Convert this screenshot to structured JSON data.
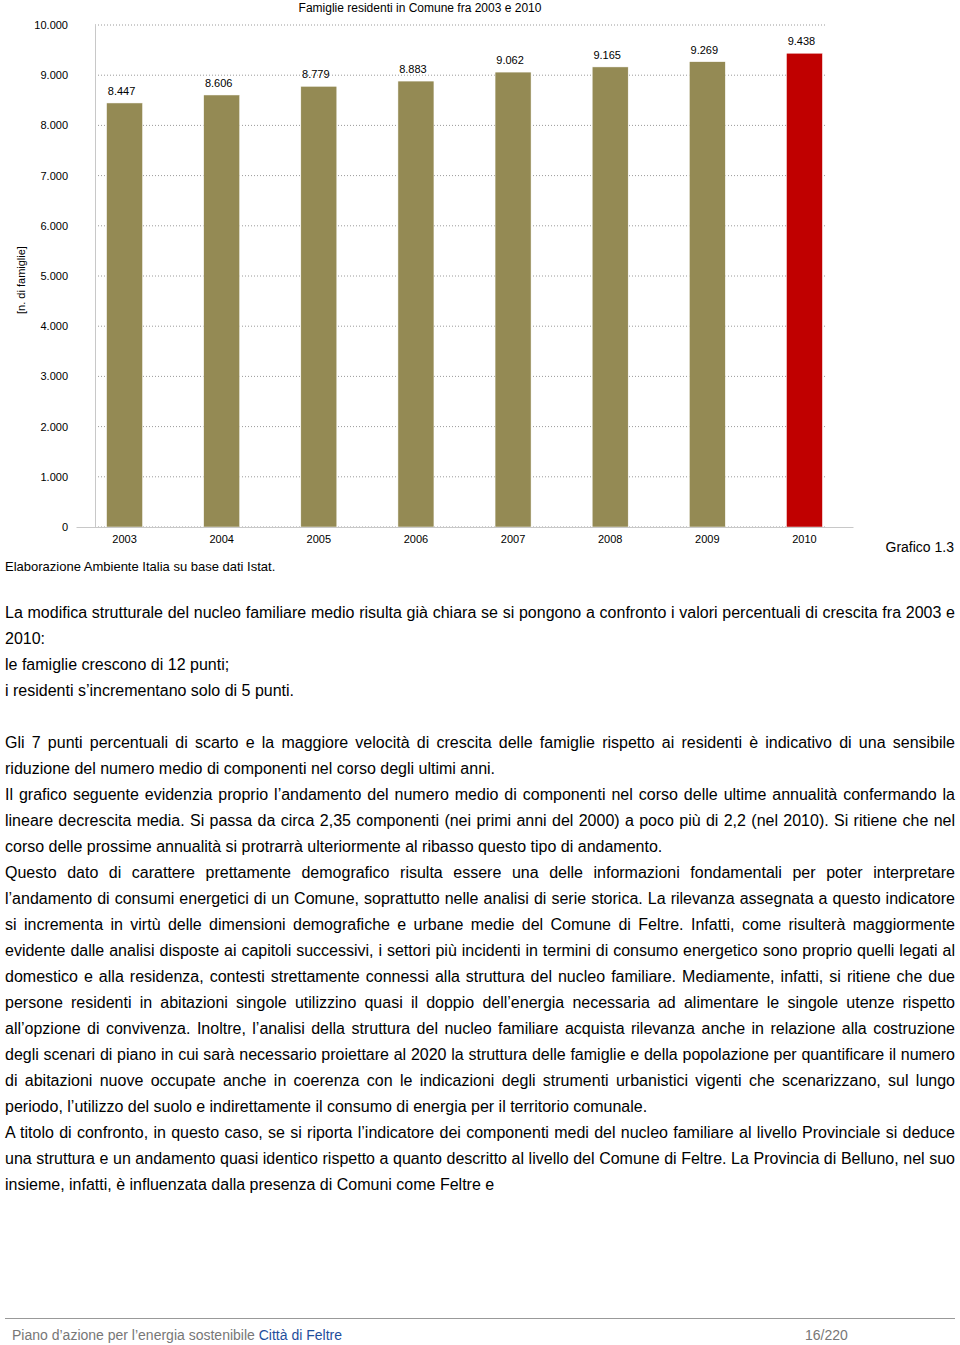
{
  "chart_data": {
    "type": "bar",
    "title": "Famiglie residenti in Comune fra 2003 e 2010",
    "y_label": "[n. di famiglie]",
    "categories": [
      "2003",
      "2004",
      "2005",
      "2006",
      "2007",
      "2008",
      "2009",
      "2010"
    ],
    "values": [
      8447,
      8606,
      8779,
      8883,
      9062,
      9165,
      9269,
      9438
    ],
    "value_labels": [
      "8.447",
      "8.606",
      "8.779",
      "8.883",
      "9.062",
      "9.165",
      "9.269",
      "9.438"
    ],
    "colors": [
      "#948a54",
      "#948a54",
      "#948a54",
      "#948a54",
      "#948a54",
      "#948a54",
      "#948a54",
      "#c00000"
    ],
    "ylim": [
      0,
      10000
    ],
    "yticks": [
      0,
      {
        "value": 1000,
        "label": "1.000"
      },
      {
        "value": 2000,
        "label": "2.000"
      },
      {
        "value": 3000,
        "label": "3.000"
      },
      {
        "value": 4000,
        "label": "4.000"
      },
      {
        "value": 5000,
        "label": "5.000"
      },
      {
        "value": 6000,
        "label": "6.000"
      },
      {
        "value": 7000,
        "label": "7.000"
      },
      {
        "value": 8000,
        "label": "8.000"
      },
      {
        "value": 9000,
        "label": "9.000"
      },
      {
        "value": 10000,
        "label": "10.000"
      }
    ],
    "grid": true,
    "data_labels": true
  },
  "document": {
    "source_note": "Elaborazione Ambiente Italia su base dati Istat.",
    "figure_label": "Grafico 1.3",
    "paragraphs": [
      "La modifica strutturale del nucleo familiare medio risulta già chiara se si pongono a confronto i valori percentuali di crescita fra 2003 e 2010:",
      "le famiglie crescono di 12 punti;",
      "i residenti s’incrementano solo di 5 punti.",
      "Gli 7 punti percentuali di scarto e la maggiore velocità di crescita delle famiglie rispetto ai residenti è indicativo di una sensibile riduzione del numero medio di componenti nel corso degli ultimi anni.",
      "Il grafico seguente evidenzia proprio l’andamento del numero medio di componenti nel corso delle ultime annualità confermando la lineare decrescita media. Si passa da circa 2,35 componenti (nei primi anni del 2000) a poco più di 2,2 (nel 2010). Si ritiene che nel corso delle prossime annualità si protrarrà ulteriormente al ribasso questo tipo di andamento.",
      "Questo dato di carattere prettamente demografico risulta essere una delle informazioni fondamentali per poter interpretare l’andamento di consumi energetici di un Comune, soprattutto nelle analisi di serie storica. La rilevanza assegnata a questo indicatore si incrementa in virtù delle dimensioni demografiche e urbane medie del Comune di Feltre. Infatti, come risulterà maggiormente evidente dalle analisi disposte ai capitoli successivi, i settori più incidenti in termini di consumo energetico sono proprio quelli legati al domestico e alla residenza, contesti strettamente connessi alla struttura del nucleo familiare. Mediamente, infatti, si ritiene che due persone residenti in abitazioni singole utilizzino quasi il doppio dell’energia necessaria ad alimentare le singole utenze rispetto all’opzione di convivenza. Inoltre, l’analisi della struttura del nucleo familiare acquista rilevanza anche in relazione alla costruzione degli scenari di piano in cui sarà necessario proiettare al 2020 la struttura delle famiglie e della popolazione per quantificare il numero di abitazioni nuove occupate anche in coerenza con le indicazioni degli strumenti urbanistici vigenti che scenarizzano, sul lungo periodo, l’utilizzo del suolo e indirettamente il consumo di energia per il territorio comunale.",
      "A titolo di confronto, in questo caso, se si riporta l’indicatore dei componenti medi del nucleo familiare al livello Provinciale si deduce una struttura e un andamento quasi identico rispetto a quanto descritto al livello del Comune di Feltre. La Provincia di Belluno, nel suo insieme, infatti, è influenzata dalla presenza di Comuni come Feltre e"
    ],
    "footer": {
      "left": "Piano d’azione per l’energia sostenibile",
      "link": "Città di Feltre",
      "page": "16/220"
    }
  }
}
